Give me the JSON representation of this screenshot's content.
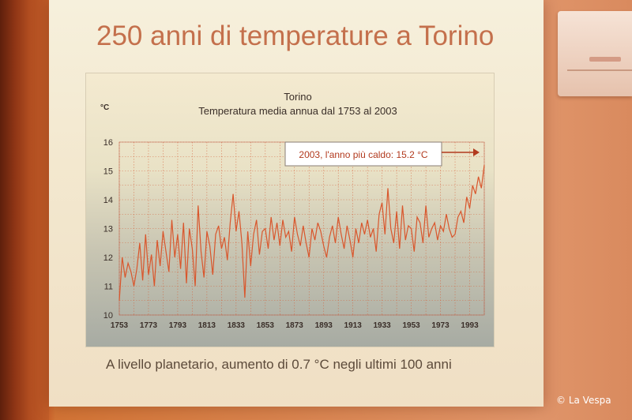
{
  "slide": {
    "title": "250 anni di temperature a Torino",
    "footer": "A livello planetario, aumento di 0.7 °C negli ultimi 100 anni"
  },
  "copyright": "© La Vespa",
  "chart_data": {
    "type": "line",
    "title": "Torino",
    "subtitle": "Temperatura media annua dal 1753 al 2003",
    "ylabel": "°C",
    "xlabel": "",
    "xlim": [
      1753,
      2003
    ],
    "ylim": [
      10,
      16
    ],
    "yticks": [
      10,
      11,
      12,
      13,
      14,
      15,
      16
    ],
    "xticks": [
      1753,
      1773,
      1793,
      1813,
      1833,
      1853,
      1873,
      1893,
      1913,
      1933,
      1953,
      1973,
      1993
    ],
    "grid": true,
    "line_color": "#d9562c",
    "annotation": "2003, l'anno più caldo: 15.2 °C",
    "series": [
      {
        "x": [
          1753,
          1755,
          1757,
          1759,
          1761,
          1763,
          1765,
          1767,
          1769,
          1771,
          1773,
          1775,
          1777,
          1779,
          1781,
          1783,
          1785,
          1787,
          1789,
          1791,
          1793,
          1795,
          1797,
          1799,
          1801,
          1803,
          1805,
          1807,
          1809,
          1811,
          1813,
          1815,
          1817,
          1819,
          1821,
          1823,
          1825,
          1827,
          1829,
          1831,
          1833,
          1835,
          1837,
          1839,
          1841,
          1843,
          1845,
          1847,
          1849,
          1851,
          1853,
          1855,
          1857,
          1859,
          1861,
          1863,
          1865,
          1867,
          1869,
          1871,
          1873,
          1875,
          1877,
          1879,
          1881,
          1883,
          1885,
          1887,
          1889,
          1891,
          1893,
          1895,
          1897,
          1899,
          1901,
          1903,
          1905,
          1907,
          1909,
          1911,
          1913,
          1915,
          1917,
          1919,
          1921,
          1923,
          1925,
          1927,
          1929,
          1931,
          1933,
          1935,
          1937,
          1939,
          1941,
          1943,
          1945,
          1947,
          1949,
          1951,
          1953,
          1955,
          1957,
          1959,
          1961,
          1963,
          1965,
          1967,
          1969,
          1971,
          1973,
          1975,
          1977,
          1979,
          1981,
          1983,
          1985,
          1987,
          1989,
          1991,
          1993,
          1995,
          1997,
          1999,
          2001,
          2003
        ],
        "values": [
          10.5,
          12.0,
          11.3,
          11.8,
          11.5,
          11.0,
          11.6,
          12.5,
          11.2,
          12.8,
          11.4,
          12.1,
          11.0,
          12.6,
          11.7,
          12.9,
          12.2,
          11.5,
          13.3,
          12.0,
          12.8,
          11.6,
          13.2,
          11.1,
          13.0,
          12.3,
          11.0,
          13.8,
          12.2,
          11.3,
          12.9,
          12.4,
          11.4,
          12.8,
          13.1,
          12.3,
          12.7,
          11.9,
          13.2,
          14.2,
          12.9,
          13.6,
          12.5,
          10.6,
          12.9,
          11.7,
          12.8,
          13.3,
          12.1,
          12.9,
          13.0,
          12.3,
          13.4,
          12.6,
          13.2,
          12.4,
          13.3,
          12.7,
          12.9,
          12.2,
          13.4,
          12.8,
          12.4,
          13.1,
          12.5,
          12.0,
          13.0,
          12.6,
          13.2,
          12.9,
          12.4,
          12.0,
          12.7,
          13.1,
          12.5,
          13.4,
          12.8,
          12.3,
          13.1,
          12.6,
          12.0,
          13.0,
          12.5,
          13.2,
          12.8,
          13.3,
          12.7,
          13.0,
          12.2,
          13.5,
          13.9,
          12.8,
          14.4,
          13.0,
          12.5,
          13.6,
          12.3,
          13.8,
          12.6,
          13.1,
          13.0,
          12.2,
          13.4,
          13.2,
          12.5,
          13.8,
          12.7,
          13.0,
          13.2,
          12.6,
          13.1,
          12.9,
          13.5,
          13.0,
          12.7,
          12.8,
          13.4,
          13.6,
          13.2,
          14.1,
          13.7,
          14.5,
          14.2,
          14.8,
          14.4,
          15.2
        ]
      }
    ]
  }
}
